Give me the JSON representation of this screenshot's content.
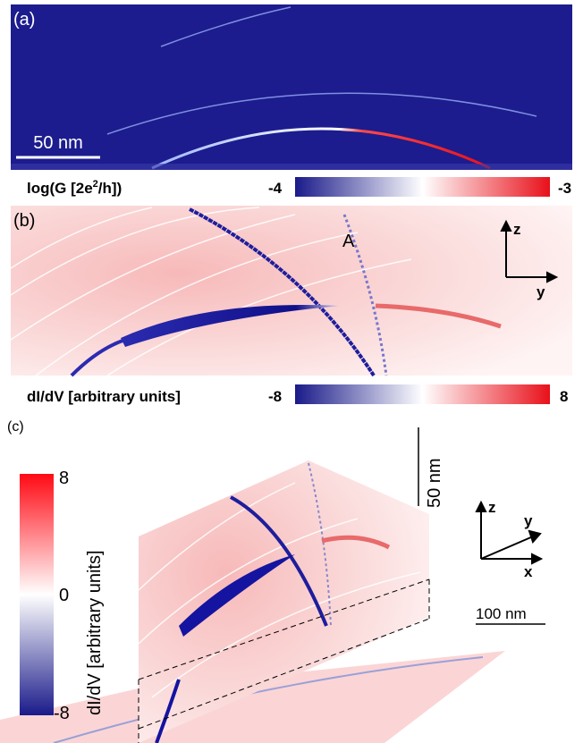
{
  "panel_a": {
    "label": "(a)",
    "scale_bar": "50 nm",
    "colorbar": {
      "title_start": "log(G [2e",
      "title_sup": "2",
      "title_end": "/h])",
      "min": "-4",
      "max": "-3"
    }
  },
  "panel_b": {
    "label": "(b)",
    "marker": "A",
    "axes": {
      "vertical": "z",
      "horizontal": "y"
    },
    "colorbar": {
      "title": "dI/dV [arbitrary units]",
      "min": "-8",
      "max": "8"
    }
  },
  "panel_c": {
    "label": "(c)",
    "scale_bar_vertical": "50 nm",
    "scale_bar_horizontal": "100 nm",
    "axes": {
      "vertical": "z",
      "depth": "y",
      "horizontal": "x"
    },
    "colorbar": {
      "title": "dI/dV [arbitrary units]",
      "max": "8",
      "mid": "0",
      "min": "-8"
    }
  }
}
